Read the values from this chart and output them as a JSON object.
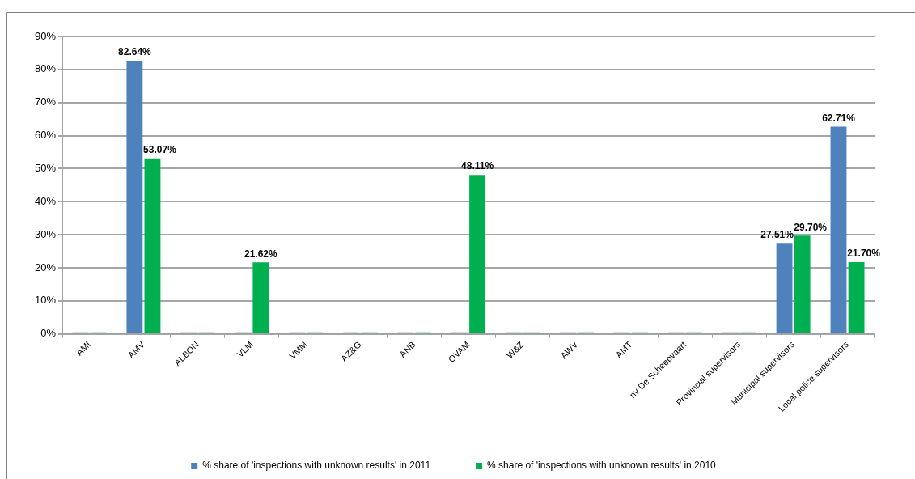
{
  "chart_data": {
    "type": "bar",
    "categories": [
      "AMI",
      "AMV",
      "ALBON",
      "VLM",
      "VMM",
      "AZ&G",
      "ANB",
      "OVAM",
      "W&Z",
      "AWV",
      "AMT",
      "nv De Scheepvaart",
      "Provincial supervisors",
      "Municipal supervisors",
      "Local police supervisors"
    ],
    "series": [
      {
        "name": "% share of 'inspections with unknown results' in 2011",
        "color": "#4f81bd",
        "values": [
          0,
          82.64,
          0,
          0,
          0,
          0,
          0,
          0,
          0,
          0,
          0,
          0,
          0,
          27.51,
          62.71
        ],
        "value_labels": [
          null,
          "82.64%",
          null,
          null,
          null,
          null,
          null,
          null,
          null,
          null,
          null,
          null,
          null,
          "27.51%",
          "62.71%"
        ]
      },
      {
        "name": "% share of 'inspections with unknown results' in 2010",
        "color": "#00b050",
        "values": [
          0,
          53.07,
          0,
          21.62,
          0,
          0,
          0,
          48.11,
          0,
          0,
          0,
          0,
          0,
          29.7,
          21.7
        ],
        "value_labels": [
          null,
          "53.07%",
          null,
          "21.62%",
          null,
          null,
          null,
          "48.11%",
          null,
          null,
          null,
          null,
          null,
          "29.70%",
          "21.70%"
        ]
      }
    ],
    "ylim": [
      0,
      90
    ],
    "yticks": [
      {
        "value": 0,
        "label": "0%"
      },
      {
        "value": 10,
        "label": "10%"
      },
      {
        "value": 20,
        "label": "20%"
      },
      {
        "value": 30,
        "label": "30%"
      },
      {
        "value": 40,
        "label": "40%"
      },
      {
        "value": 50,
        "label": "50%"
      },
      {
        "value": 60,
        "label": "60%"
      },
      {
        "value": 70,
        "label": "70%"
      },
      {
        "value": 80,
        "label": "80%"
      },
      {
        "value": 90,
        "label": "90%"
      }
    ],
    "grid": "y",
    "legend": "bottom"
  }
}
